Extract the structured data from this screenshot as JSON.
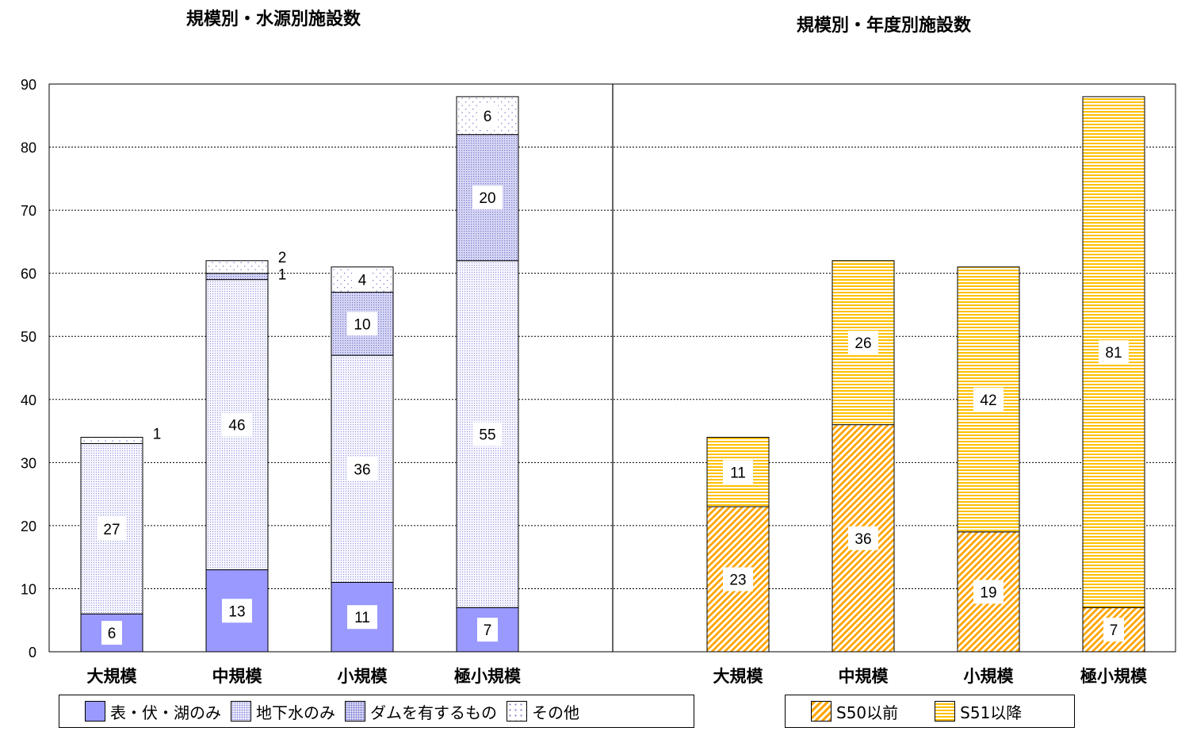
{
  "titles": {
    "left": "規模別・水源別施設数",
    "right": "規模別・年度別施設数"
  },
  "legends": {
    "left": [
      "表・伏・湖のみ",
      "地下水のみ",
      "ダムを有するもの",
      "その他"
    ],
    "right": [
      "S50以前",
      "S51以降"
    ]
  },
  "chart_data": [
    {
      "type": "bar",
      "stacked": true,
      "title": "規模別・水源別施設数",
      "categories": [
        "大規模",
        "中規模",
        "小規模",
        "極小規模"
      ],
      "series": [
        {
          "name": "表・伏・湖のみ",
          "values": [
            6,
            13,
            11,
            7
          ],
          "pattern": "solid",
          "color": "#9999ff"
        },
        {
          "name": "地下水のみ",
          "values": [
            27,
            46,
            36,
            55
          ],
          "pattern": "fine-dots",
          "color": "#8f8fd8"
        },
        {
          "name": "ダムを有するもの",
          "values": [
            0,
            1,
            10,
            20
          ],
          "pattern": "dense-dots",
          "color": "#6f6fcc"
        },
        {
          "name": "その他",
          "values": [
            1,
            2,
            4,
            6
          ],
          "pattern": "sparse-dots",
          "color": "#7c7cc8"
        }
      ],
      "ylim": [
        0,
        90
      ],
      "yticks": [
        0,
        10,
        20,
        30,
        40,
        50,
        60,
        70,
        80,
        90
      ],
      "grid": "dashed-horizontal",
      "legend_position": "bottom"
    },
    {
      "type": "bar",
      "stacked": true,
      "title": "規模別・年度別施設数",
      "categories": [
        "大規模",
        "中規模",
        "小規模",
        "極小規模"
      ],
      "series": [
        {
          "name": "S50以前",
          "values": [
            23,
            36,
            19,
            7
          ],
          "pattern": "diagonal",
          "color": "#ffa500"
        },
        {
          "name": "S51以降",
          "values": [
            11,
            26,
            42,
            81
          ],
          "pattern": "horizontal-lines",
          "color": "#ffc000"
        }
      ],
      "ylim": [
        0,
        90
      ],
      "grid": "dashed-horizontal",
      "legend_position": "bottom"
    }
  ]
}
